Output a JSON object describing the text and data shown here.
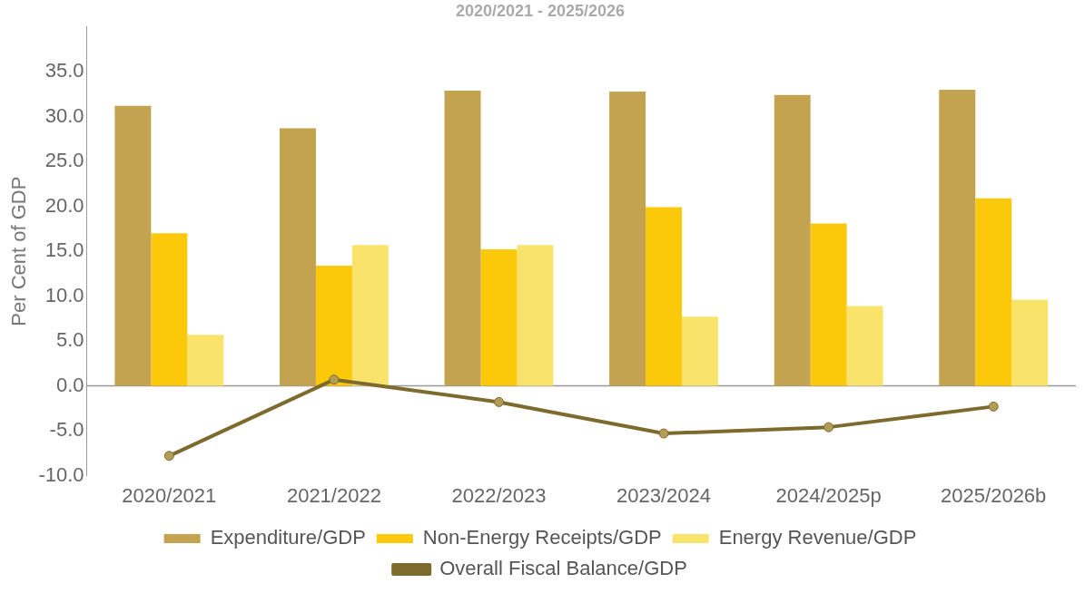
{
  "chart_data": {
    "type": "bar",
    "title": "2020/2021 - 2025/2026",
    "ylabel": "Per Cent of GDP",
    "categories": [
      "2020/2021",
      "2021/2022",
      "2022/2023",
      "2023/2024",
      "2024/2025p",
      "2025/2026b"
    ],
    "series": [
      {
        "name": "Expenditure/GDP",
        "color": "#c4a350",
        "values": [
          31.2,
          28.7,
          32.9,
          32.8,
          32.4,
          33.0
        ]
      },
      {
        "name": "Non-Energy Receipts/GDP",
        "color": "#fcc80a",
        "values": [
          17.0,
          13.4,
          15.2,
          19.9,
          18.1,
          20.9
        ]
      },
      {
        "name": "Energy Revenue/GDP",
        "color": "#fae36a",
        "values": [
          5.7,
          15.7,
          15.7,
          7.7,
          8.9,
          9.6
        ]
      },
      {
        "name": "Overall Fiscal Balance/GDP",
        "type": "line",
        "color": "#7d6b2e",
        "values": [
          -7.8,
          0.7,
          -1.8,
          -5.3,
          -4.6,
          -2.3
        ]
      }
    ],
    "ylim": [
      -10,
      40
    ],
    "yticks": [
      {
        "value": -10,
        "label": "-10.0"
      },
      {
        "value": -5,
        "label": "-5.0"
      },
      {
        "value": 0,
        "label": "0.0"
      },
      {
        "value": 5,
        "label": "5.0"
      },
      {
        "value": 10,
        "label": "10.0"
      },
      {
        "value": 15,
        "label": "15.0"
      },
      {
        "value": 20,
        "label": "20.0"
      },
      {
        "value": 25,
        "label": "25.0"
      },
      {
        "value": 30,
        "label": "30.0"
      },
      {
        "value": 35,
        "label": "35.0"
      }
    ],
    "ref_lines": [
      {
        "axis": "y",
        "value": 0,
        "color": "#999999"
      }
    ],
    "grid": false,
    "legend": "bottom",
    "marker": "circle"
  }
}
